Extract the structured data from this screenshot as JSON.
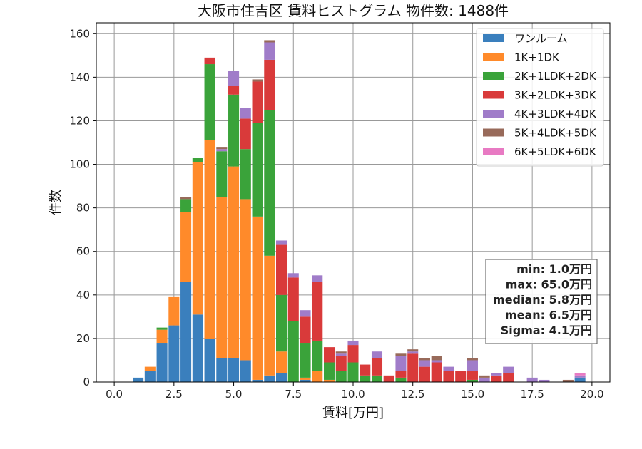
{
  "chart_data": {
    "type": "bar",
    "stacked": true,
    "title": "大阪市住吉区 賃料ヒストグラム  物件数: 1488件",
    "xlabel": "賃料[万円]",
    "ylabel": "件数",
    "xlim": [
      -0.75,
      20.75
    ],
    "ylim": [
      0,
      165
    ],
    "grid": true,
    "legend_position": "top-right",
    "bin_width": 0.5,
    "x_ticks": [
      0,
      2.5,
      5,
      7.5,
      10,
      12.5,
      15,
      17.5,
      20
    ],
    "x_tick_labels": [
      "0.0",
      "2.5",
      "5.0",
      "7.5",
      "10.0",
      "12.5",
      "15.0",
      "17.5",
      "20.0"
    ],
    "y_ticks": [
      0,
      20,
      40,
      60,
      80,
      100,
      120,
      140,
      160
    ],
    "y_tick_labels": [
      "0",
      "20",
      "40",
      "60",
      "80",
      "100",
      "120",
      "140",
      "160"
    ],
    "x": [
      1.0,
      1.5,
      2.0,
      2.5,
      3.0,
      3.5,
      4.0,
      4.5,
      5.0,
      5.5,
      6.0,
      6.5,
      7.0,
      7.5,
      8.0,
      8.5,
      9.0,
      9.5,
      10.0,
      10.5,
      11.0,
      11.5,
      12.0,
      12.5,
      13.0,
      13.5,
      14.0,
      14.5,
      15.0,
      15.5,
      16.0,
      16.5,
      17.0,
      17.5,
      18.0,
      18.5,
      19.0,
      19.5
    ],
    "series": [
      {
        "name": "ワンルーム",
        "color": "#3a7fbd",
        "values": [
          2,
          5,
          18,
          26,
          46,
          31,
          20,
          11,
          11,
          10,
          1,
          3,
          4,
          0,
          1,
          0,
          0,
          0,
          0,
          0,
          0,
          0,
          0,
          0,
          0,
          0,
          0,
          0,
          0,
          0,
          0,
          0,
          0,
          0,
          0,
          0,
          0,
          2
        ]
      },
      {
        "name": "1K+1DK",
        "color": "#ff8a2a",
        "values": [
          0,
          2,
          6,
          13,
          32,
          70,
          91,
          74,
          88,
          74,
          75,
          55,
          10,
          0,
          1,
          5,
          1,
          0,
          0,
          0,
          0,
          0,
          0,
          0,
          0,
          0,
          0,
          0,
          0,
          0,
          0,
          0,
          0,
          0,
          0,
          0,
          0,
          0
        ]
      },
      {
        "name": "2K+1LDK+2DK",
        "color": "#3aa33a",
        "values": [
          0,
          0,
          1,
          0,
          6,
          2,
          35,
          21,
          33,
          23,
          43,
          67,
          26,
          28,
          16,
          14,
          8,
          5,
          9,
          3,
          3,
          0,
          2,
          0,
          0,
          0,
          0,
          0,
          1,
          0,
          0,
          0,
          0,
          0,
          0,
          0,
          0,
          0
        ]
      },
      {
        "name": "3K+2LDK+3DK",
        "color": "#d93a3a",
        "values": [
          0,
          0,
          0,
          0,
          0,
          0,
          3,
          0,
          4,
          14,
          19,
          23,
          23,
          20,
          12,
          27,
          7,
          7,
          8,
          5,
          8,
          3,
          3,
          13,
          7,
          9,
          5,
          5,
          4,
          0,
          3,
          4,
          0,
          0,
          0,
          0,
          0,
          0
        ]
      },
      {
        "name": "4K+3LDK+4DK",
        "color": "#a07cc9",
        "values": [
          0,
          0,
          0,
          0,
          0,
          0,
          0,
          1,
          7,
          5,
          0,
          8,
          2,
          2,
          3,
          3,
          0,
          1,
          2,
          0,
          3,
          0,
          7,
          1,
          3,
          1,
          2,
          0,
          5,
          2,
          1,
          3,
          0,
          2,
          1,
          0,
          0,
          1
        ]
      },
      {
        "name": "5K+4LDK+5DK",
        "color": "#986a5a",
        "values": [
          0,
          0,
          0,
          0,
          1,
          0,
          0,
          1,
          0,
          0,
          1,
          1,
          0,
          0,
          0,
          0,
          0,
          1,
          0,
          0,
          0,
          0,
          1,
          1,
          1,
          2,
          0,
          0,
          1,
          1,
          0,
          0,
          0,
          0,
          0,
          0,
          1,
          0
        ]
      },
      {
        "name": "6K+5LDK+6DK",
        "color": "#e87ac3",
        "values": [
          0,
          0,
          0,
          0,
          0,
          0,
          0,
          0,
          0,
          0,
          0,
          0,
          0,
          0,
          0,
          0,
          0,
          0,
          0,
          0,
          0,
          0,
          0,
          0,
          0,
          0,
          0,
          0,
          0,
          0,
          0,
          0,
          0,
          0,
          0,
          0,
          0,
          1
        ]
      }
    ],
    "stats_box": [
      "min: 1.0万円",
      "max: 65.0万円",
      "median: 5.8万円",
      "mean: 6.5万円",
      "Sigma: 4.1万円"
    ]
  }
}
